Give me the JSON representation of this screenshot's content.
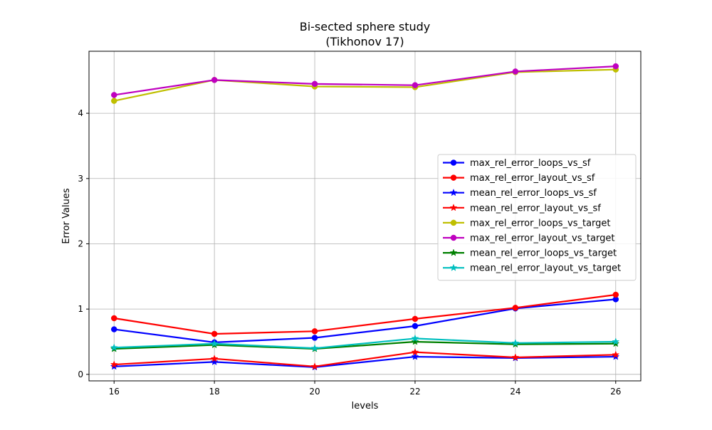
{
  "chart_data": {
    "type": "line",
    "title_line1": "Bi-sected sphere study",
    "title_line2": "(Tikhonov 17)",
    "xlabel": "levels",
    "ylabel": "Error Values",
    "x": [
      16,
      18,
      20,
      22,
      24,
      26
    ],
    "xlim": [
      15.5,
      26.5
    ],
    "ylim": [
      -0.1,
      4.95
    ],
    "xticks": [
      16,
      18,
      20,
      22,
      24,
      26
    ],
    "yticks": [
      0,
      1,
      2,
      3,
      4
    ],
    "grid": true,
    "legend_position": "center-right",
    "series": [
      {
        "name": "max_rel_error_loops_vs_sf",
        "color": "#0000ff",
        "marker": "circle",
        "values": [
          0.69,
          0.49,
          0.56,
          0.74,
          1.01,
          1.15
        ]
      },
      {
        "name": "max_rel_error_layout_vs_sf",
        "color": "#ff0000",
        "marker": "circle",
        "values": [
          0.86,
          0.62,
          0.66,
          0.85,
          1.02,
          1.22
        ]
      },
      {
        "name": "mean_rel_error_loops_vs_sf",
        "color": "#0000ff",
        "marker": "star",
        "values": [
          0.12,
          0.19,
          0.11,
          0.27,
          0.25,
          0.27
        ]
      },
      {
        "name": "mean_rel_error_layout_vs_sf",
        "color": "#ff0000",
        "marker": "star",
        "values": [
          0.15,
          0.24,
          0.12,
          0.34,
          0.26,
          0.3
        ]
      },
      {
        "name": "max_rel_error_loops_vs_target",
        "color": "#bfbf00",
        "marker": "circle",
        "values": [
          4.19,
          4.51,
          4.41,
          4.4,
          4.63,
          4.67
        ]
      },
      {
        "name": "max_rel_error_layout_vs_target",
        "color": "#bf00bf",
        "marker": "circle",
        "values": [
          4.28,
          4.51,
          4.45,
          4.43,
          4.64,
          4.72
        ]
      },
      {
        "name": "mean_rel_error_loops_vs_target",
        "color": "#008000",
        "marker": "star",
        "values": [
          0.39,
          0.45,
          0.39,
          0.5,
          0.46,
          0.47
        ]
      },
      {
        "name": "mean_rel_error_layout_vs_target",
        "color": "#00bfbf",
        "marker": "star",
        "values": [
          0.41,
          0.47,
          0.4,
          0.55,
          0.48,
          0.5
        ]
      }
    ]
  }
}
